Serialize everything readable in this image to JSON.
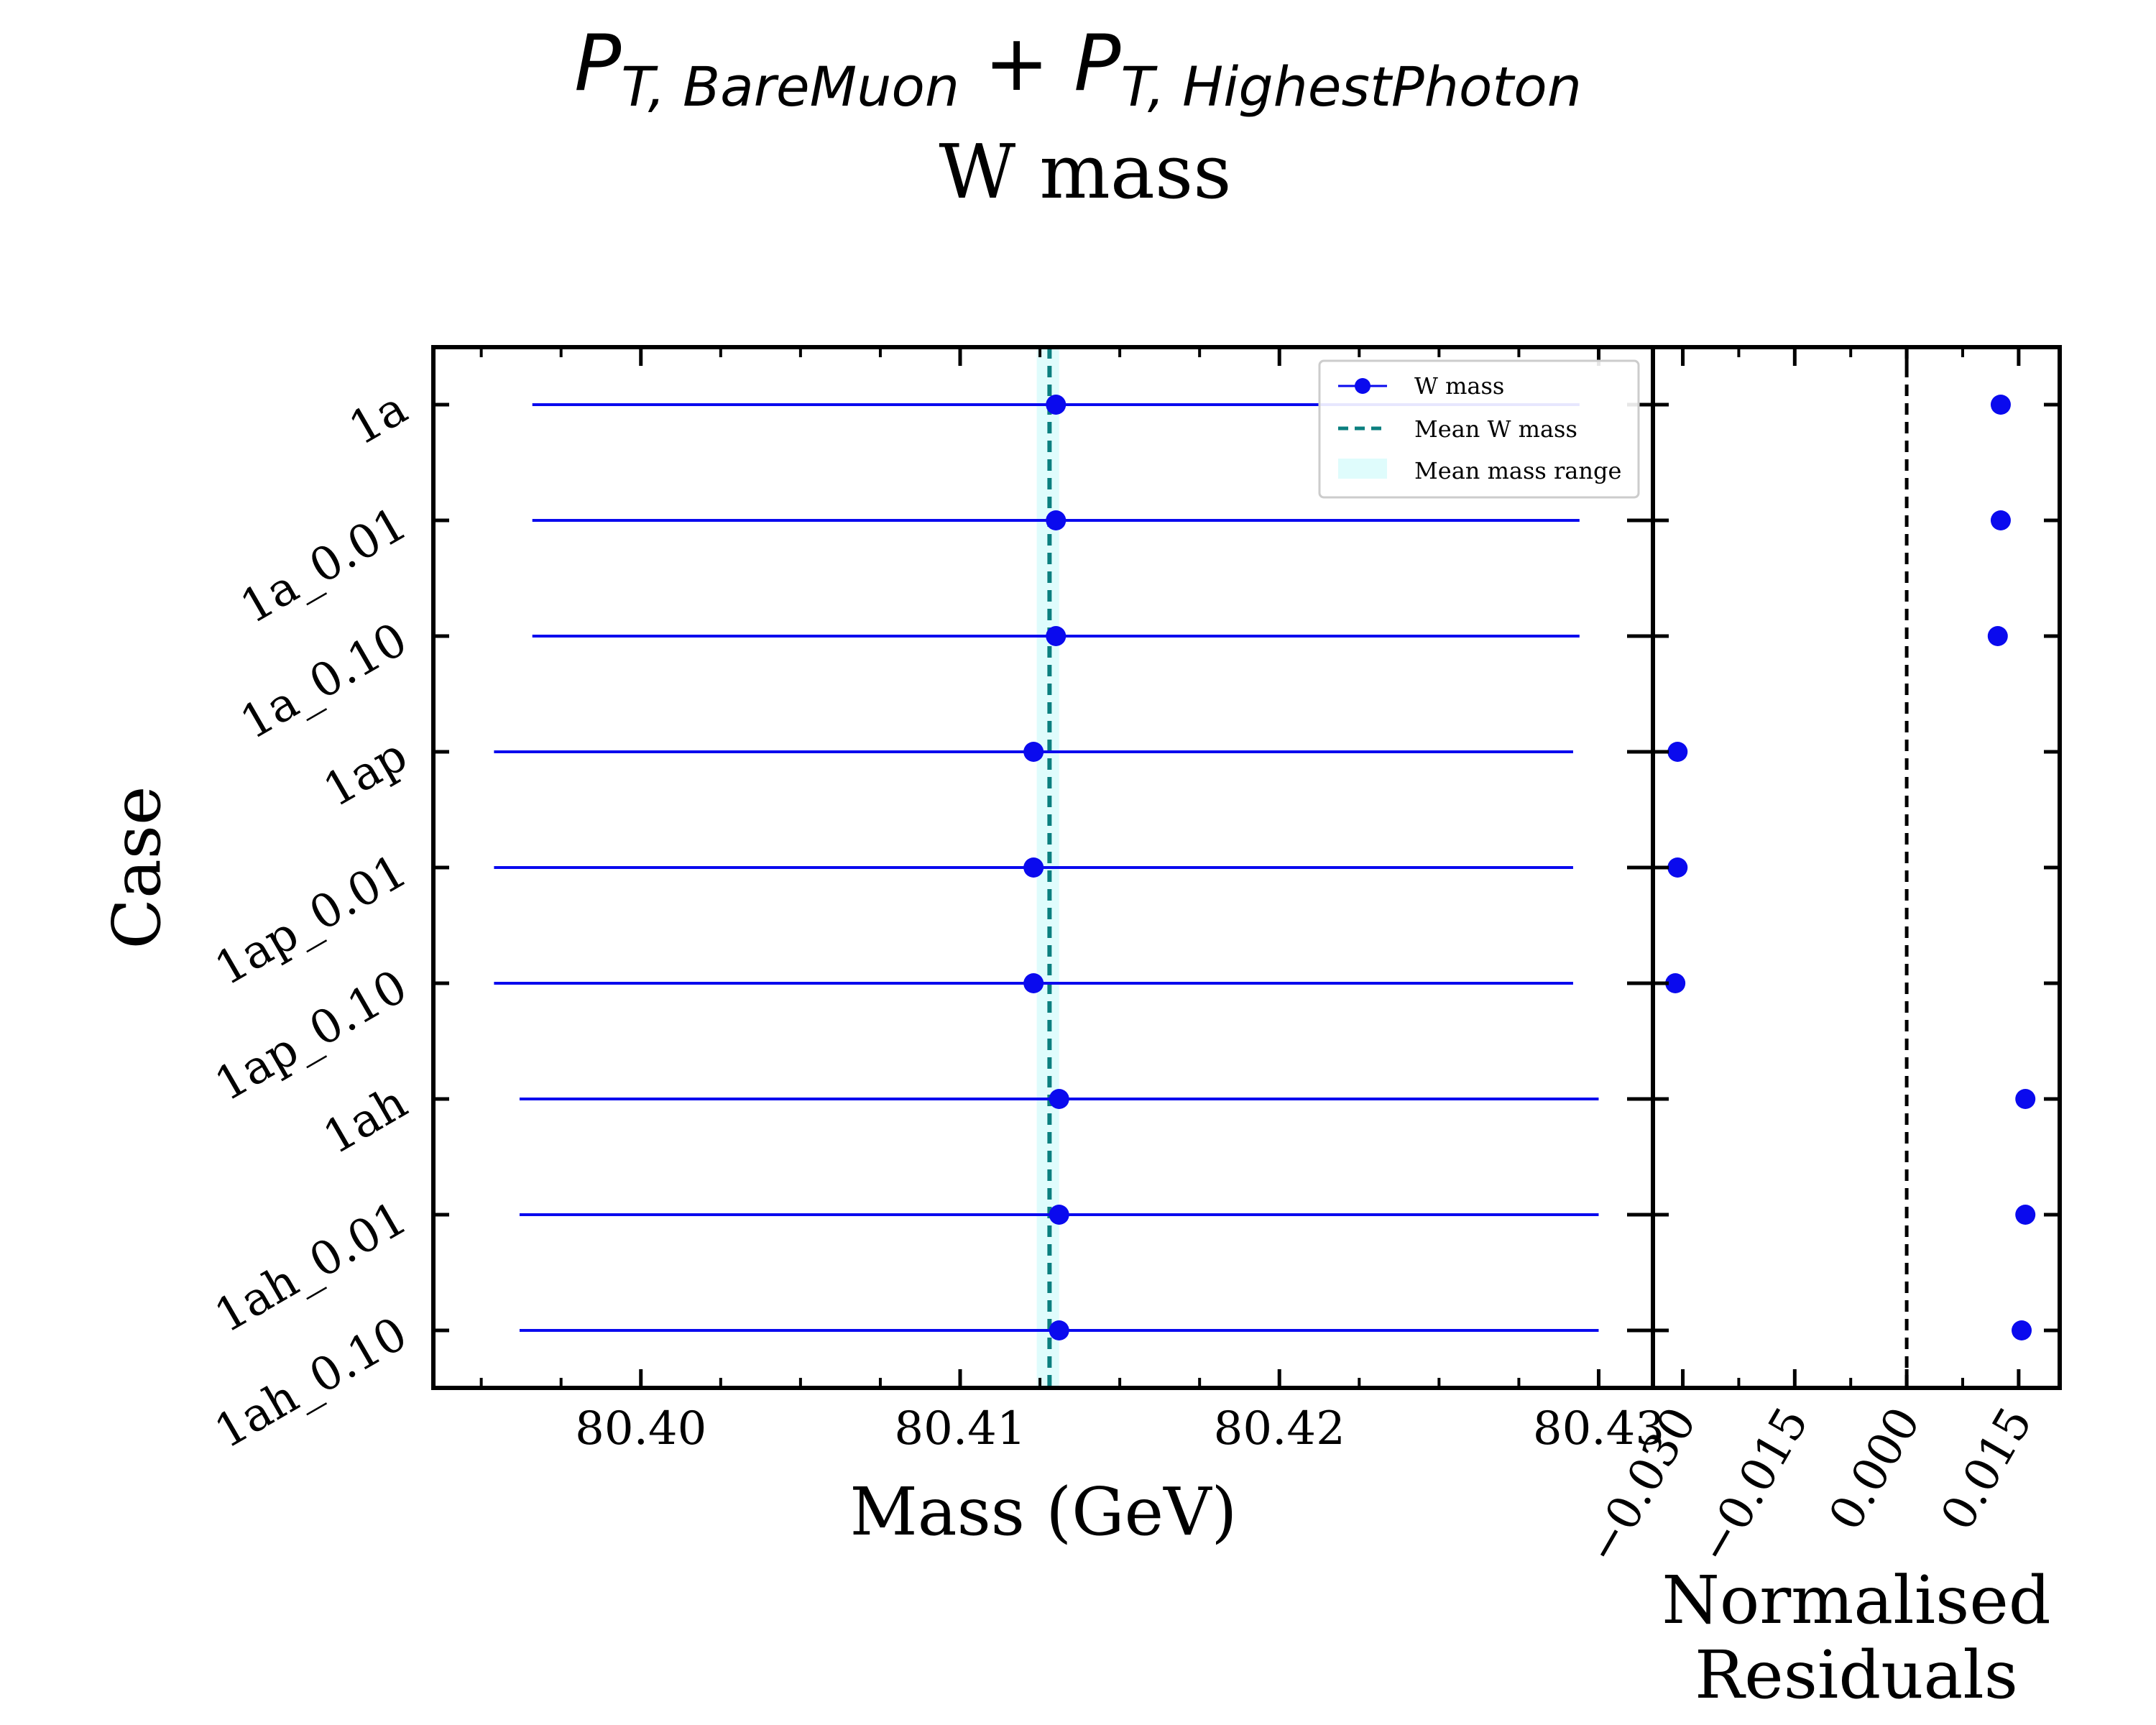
{
  "title": {
    "line1": {
      "p1": "P",
      "sub1": "T, BareMuon",
      "plus": " + ",
      "p2": "P",
      "sub2": "T, HighestPhoton"
    },
    "line2": "W mass"
  },
  "colors": {
    "points": "#0a0aee",
    "mean_line": "#0b7f7f",
    "mean_band": "#dffcfc",
    "residual_zero": "#000000"
  },
  "chart_data": [
    {
      "type": "scatter",
      "subtype": "horizontal-errorbar",
      "xlabel": "Mass (GeV)",
      "ylabel": "Case",
      "xlim": [
        80.3935,
        80.4317
      ],
      "xticks": [
        80.4,
        80.41,
        80.42,
        80.43
      ],
      "xtick_labels": [
        "80.40",
        "80.41",
        "80.42",
        "80.43"
      ],
      "categories": [
        "1a",
        "1a_0.01",
        "1a_0.10",
        "1ap",
        "1ap_0.01",
        "1ap_0.10",
        "1ah",
        "1ah_0.01",
        "1ah_0.10"
      ],
      "series": [
        {
          "name": "W mass",
          "values": [
            80.413,
            80.413,
            80.413,
            80.4123,
            80.4123,
            80.4123,
            80.4131,
            80.4131,
            80.4131
          ],
          "err_low": [
            80.3966,
            80.3966,
            80.3966,
            80.3954,
            80.3954,
            80.3954,
            80.3962,
            80.3962,
            80.3962
          ],
          "err_high": [
            80.4294,
            80.4294,
            80.4294,
            80.4292,
            80.4292,
            80.4292,
            80.43,
            80.43,
            80.43
          ]
        }
      ],
      "mean": {
        "name": "Mean W mass",
        "value": 80.4128
      },
      "mean_range": {
        "name": "Mean mass range",
        "low": 80.4124,
        "high": 80.4131
      },
      "legend": {
        "placement": "top-right",
        "entries": [
          "W mass",
          "Mean W mass",
          "Mean mass range"
        ]
      },
      "grid": false
    },
    {
      "type": "scatter",
      "xlabel_line1": "Normalised",
      "xlabel_line2": "Residuals",
      "xlim": [
        -0.034,
        0.0205
      ],
      "xticks": [
        -0.03,
        -0.015,
        0.0,
        0.015
      ],
      "xtick_labels": [
        "−0.030",
        "−0.015",
        "0.000",
        "0.015"
      ],
      "zero_line": 0.0,
      "values": [
        0.0126,
        0.0126,
        0.0122,
        -0.0307,
        -0.0307,
        -0.031,
        0.0159,
        0.0159,
        0.0154
      ],
      "grid": false
    }
  ]
}
